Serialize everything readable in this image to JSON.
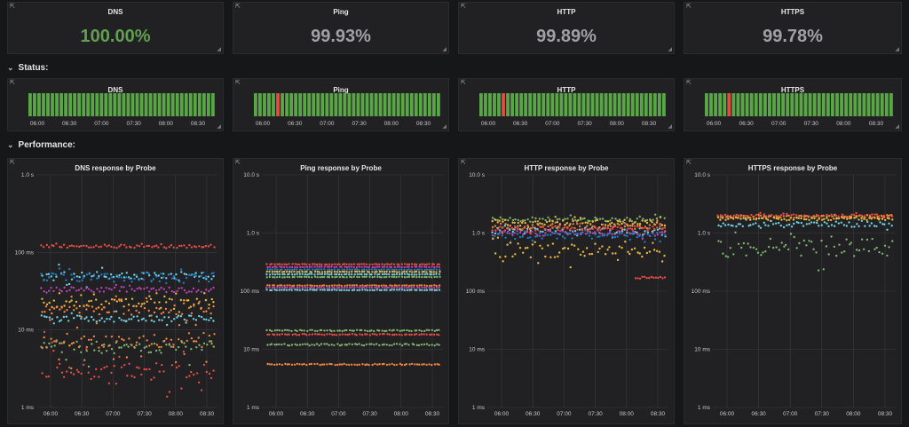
{
  "colors": {
    "background": "#161719",
    "panel": "#212124",
    "ok_green": "#629e51",
    "value_grey": "#9fa1a4",
    "down_red": "#e24d42",
    "bar_green": "#5aa546"
  },
  "icons": {
    "panel_menu": "external-link-icon",
    "resize": "resize-corner-icon",
    "row_toggle": "chevron-down-icon"
  },
  "stats": [
    {
      "title": "DNS",
      "value": "100.00%",
      "color": "#629e51"
    },
    {
      "title": "Ping",
      "value": "99.93%",
      "color": "#9fa1a4"
    },
    {
      "title": "HTTP",
      "value": "99.89%",
      "color": "#9fa1a4"
    },
    {
      "title": "HTTPS",
      "value": "99.78%",
      "color": "#9fa1a4"
    }
  ],
  "rows": {
    "status": "Status:",
    "performance": "Performance:"
  },
  "status_panels": [
    {
      "title": "DNS",
      "bar_count": 42,
      "down_bars": []
    },
    {
      "title": "Ping",
      "bar_count": 42,
      "down_bars": [
        5
      ]
    },
    {
      "title": "HTTP",
      "bar_count": 42,
      "down_bars": [
        5
      ]
    },
    {
      "title": "HTTPS",
      "bar_count": 42,
      "down_bars": [
        5
      ]
    }
  ],
  "time_ticks": [
    "06:00",
    "06:30",
    "07:00",
    "07:30",
    "08:00",
    "08:30"
  ],
  "chart_data": [
    {
      "type": "scatter",
      "title": "DNS response by Probe",
      "yscale": "log",
      "y_ticks": [
        "1 ms",
        "10 ms",
        "100 ms",
        "1.0 s"
      ],
      "ylim_ms": [
        1,
        1000
      ],
      "x_ticks": [
        "06:00",
        "06:30",
        "07:00",
        "07:30",
        "08:00",
        "08:30"
      ],
      "grid": true,
      "series": [
        {
          "color": "#e24d42",
          "center_ms": 120,
          "spread": 0.02,
          "noise": 0.02
        },
        {
          "color": "#6ed0e0",
          "center_ms": 50,
          "spread": 0.12,
          "noise": 0.05
        },
        {
          "color": "#ba43a9",
          "center_ms": 33,
          "spread": 0.05,
          "noise": 0.03
        },
        {
          "color": "#1f78c1",
          "center_ms": 48,
          "spread": 0.1,
          "noise": 0.06
        },
        {
          "color": "#eab839",
          "center_ms": 22,
          "spread": 0.15,
          "noise": 0.06
        },
        {
          "color": "#ef843c",
          "center_ms": 18,
          "spread": 0.2,
          "noise": 0.06
        },
        {
          "color": "#6ed0e0",
          "center_ms": 14,
          "spread": 0.08,
          "noise": 0.04
        },
        {
          "color": "#7eb26d",
          "center_ms": 6,
          "spread": 0.3,
          "noise": 0.08
        },
        {
          "color": "#ef843c",
          "center_ms": 7,
          "spread": 0.25,
          "noise": 0.08
        },
        {
          "color": "#e24d42",
          "center_ms": 3,
          "spread": 0.4,
          "noise": 0.1
        }
      ]
    },
    {
      "type": "scatter",
      "title": "Ping response by Probe",
      "yscale": "log",
      "y_ticks": [
        "1 ms",
        "10 ms",
        "100 ms",
        "1.0 s",
        "10.0 s"
      ],
      "ylim_ms": [
        1,
        10000
      ],
      "x_ticks": [
        "06:00",
        "06:30",
        "07:00",
        "07:30",
        "08:00",
        "08:30"
      ],
      "grid": true,
      "series": [
        {
          "color": "#e24d42",
          "center_ms": 290,
          "spread": 0.0,
          "noise": 0.005
        },
        {
          "color": "#ba43a9",
          "center_ms": 260,
          "spread": 0.0,
          "noise": 0.005
        },
        {
          "color": "#1f78c1",
          "center_ms": 235,
          "spread": 0.0,
          "noise": 0.005
        },
        {
          "color": "#eab839",
          "center_ms": 215,
          "spread": 0.0,
          "noise": 0.005
        },
        {
          "color": "#6ed0e0",
          "center_ms": 195,
          "spread": 0.0,
          "noise": 0.005
        },
        {
          "color": "#7eb26d",
          "center_ms": 175,
          "spread": 0.0,
          "noise": 0.005
        },
        {
          "color": "#ef843c",
          "center_ms": 125,
          "spread": 0.0,
          "noise": 0.005
        },
        {
          "color": "#ba43a9",
          "center_ms": 115,
          "spread": 0.0,
          "noise": 0.005
        },
        {
          "color": "#6ed0e0",
          "center_ms": 105,
          "spread": 0.0,
          "noise": 0.005
        },
        {
          "color": "#7eb26d",
          "center_ms": 21,
          "spread": 0.0,
          "noise": 0.01
        },
        {
          "color": "#e24d42",
          "center_ms": 18,
          "spread": 0.0,
          "noise": 0.01
        },
        {
          "color": "#7eb26d",
          "center_ms": 12,
          "spread": 0.0,
          "noise": 0.015
        },
        {
          "color": "#ef843c",
          "center_ms": 5.5,
          "spread": 0.0,
          "noise": 0.01
        }
      ]
    },
    {
      "type": "scatter",
      "title": "HTTP response by Probe",
      "yscale": "log",
      "y_ticks": [
        "1 ms",
        "10 ms",
        "100 ms",
        "1.0 s",
        "10.0 s"
      ],
      "ylim_ms": [
        1,
        10000
      ],
      "x_ticks": [
        "06:00",
        "06:30",
        "07:00",
        "07:30",
        "08:00",
        "08:30"
      ],
      "grid": true,
      "series": [
        {
          "color": "#7eb26d",
          "center_ms": 1700,
          "spread": 0.06,
          "noise": 0.04
        },
        {
          "color": "#eab839",
          "center_ms": 1500,
          "spread": 0.08,
          "noise": 0.05
        },
        {
          "color": "#ef843c",
          "center_ms": 1300,
          "spread": 0.08,
          "noise": 0.05
        },
        {
          "color": "#6ed0e0",
          "center_ms": 1100,
          "spread": 0.07,
          "noise": 0.05
        },
        {
          "color": "#ba43a9",
          "center_ms": 1000,
          "spread": 0.07,
          "noise": 0.04
        },
        {
          "color": "#e24d42",
          "center_ms": 1200,
          "spread": 0.06,
          "noise": 0.04
        },
        {
          "color": "#1f78c1",
          "center_ms": 900,
          "spread": 0.08,
          "noise": 0.05
        },
        {
          "color": "#eab839",
          "center_ms": 500,
          "spread": 0.25,
          "noise": 0.12
        }
      ],
      "extra_segment": {
        "color": "#e24d42",
        "from_frac": 0.83,
        "to_frac": 1.0,
        "value_ms": 170
      }
    },
    {
      "type": "scatter",
      "title": "HTTPS response by Probe",
      "yscale": "log",
      "y_ticks": [
        "1 ms",
        "10 ms",
        "100 ms",
        "1.0 s",
        "10.0 s"
      ],
      "ylim_ms": [
        1,
        10000
      ],
      "x_ticks": [
        "06:00",
        "06:30",
        "07:00",
        "07:30",
        "08:00",
        "08:30"
      ],
      "grid": true,
      "series": [
        {
          "color": "#e24d42",
          "center_ms": 2000,
          "spread": 0.03,
          "noise": 0.02
        },
        {
          "color": "#ef843c",
          "center_ms": 1900,
          "spread": 0.03,
          "noise": 0.02
        },
        {
          "color": "#eab839",
          "center_ms": 1750,
          "spread": 0.03,
          "noise": 0.02
        },
        {
          "color": "#6ed0e0",
          "center_ms": 1400,
          "spread": 0.06,
          "noise": 0.04
        },
        {
          "color": "#7eb26d",
          "center_ms": 550,
          "spread": 0.3,
          "noise": 0.15
        }
      ]
    }
  ]
}
